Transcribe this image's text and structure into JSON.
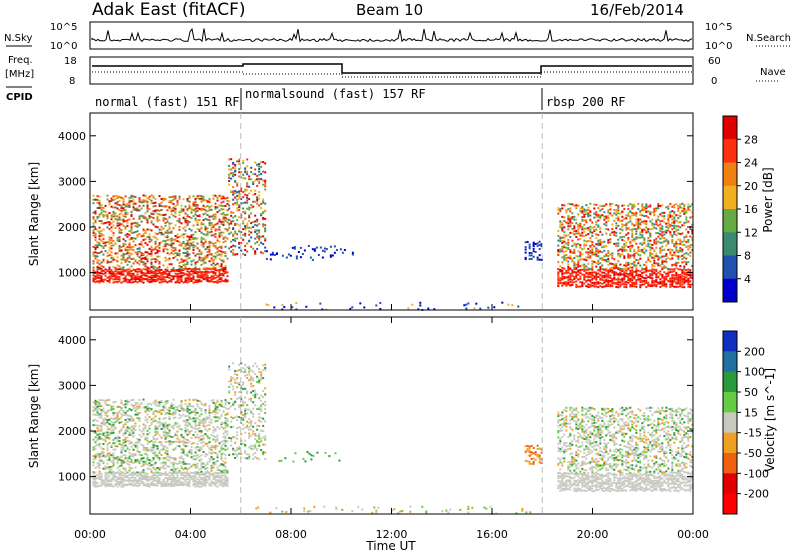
{
  "header": {
    "site": "Adak East (fitACF)",
    "beam": "Beam 10",
    "date": "16/Feb/2014"
  },
  "labels": {
    "nsky": "N.Sky",
    "nsearch": "N.Search",
    "freq_line1": "Freq.",
    "freq_line2": "[MHz]",
    "nave": "Nave",
    "cpid": "CPID",
    "nsky_top": "10^5",
    "nsky_bot": "10^0",
    "freq_top": "18",
    "freq_bot": "8",
    "nave_top": "60",
    "nave_bot": "0"
  },
  "cpid_segments": [
    {
      "label": "normal (fast) 151 RF",
      "start_hour": 0,
      "end_hour": 6
    },
    {
      "label": "normalsound (fast) 157 RF",
      "start_hour": 6,
      "end_hour": 18
    },
    {
      "label": "rbsp 200 RF",
      "start_hour": 18,
      "end_hour": 24
    }
  ],
  "chart_data": [
    {
      "type": "heatmap",
      "name": "power-panel",
      "ylabel": "Slant Range [km]",
      "ylim": [
        180,
        4500
      ],
      "yticks": [
        "1000",
        "2000",
        "3000",
        "4000"
      ],
      "xlim": [
        0,
        24
      ],
      "colorbar": {
        "label": "Power [dB]",
        "levels": [
          "4",
          "8",
          "12",
          "16",
          "20",
          "24",
          "28"
        ],
        "colors": [
          "#0000cc",
          "#2050b0",
          "#3a8a70",
          "#66aa44",
          "#f0b020",
          "#f08010",
          "#ff3010",
          "#e00000"
        ]
      }
    },
    {
      "type": "heatmap",
      "name": "velocity-panel",
      "ylabel": "Slant Range [km]",
      "xlabel": "Time UT",
      "ylim": [
        180,
        4500
      ],
      "yticks": [
        "1000",
        "2000",
        "3000",
        "4000"
      ],
      "xlim": [
        0,
        24
      ],
      "xticks": [
        "00:00",
        "04:00",
        "08:00",
        "12:00",
        "16:00",
        "20:00",
        "00:00"
      ],
      "colorbar": {
        "label": "Velocity [m s^-1]",
        "levels": [
          "200",
          "100",
          "50",
          "15",
          "-15",
          "-50",
          "-100",
          "-200"
        ],
        "colors": [
          "#1030c0",
          "#2070a0",
          "#2a9a3a",
          "#66cc44",
          "#c8c8c0",
          "#f0a020",
          "#f06010",
          "#e00000",
          "#ff0000"
        ]
      }
    }
  ]
}
